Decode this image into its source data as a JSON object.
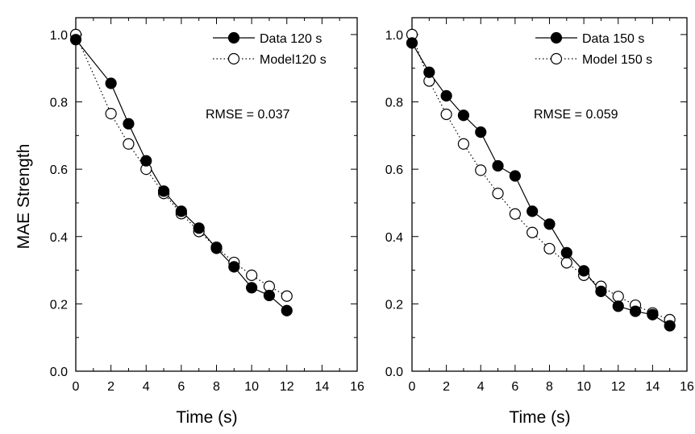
{
  "figure": {
    "ylabel": "MAE Strength"
  },
  "chart_data": [
    {
      "type": "line",
      "title": "",
      "xlabel": "Time (s)",
      "ylabel": "MAE Strength",
      "xlim": [
        0,
        16
      ],
      "ylim": [
        0,
        1.05
      ],
      "xticks": [
        "0",
        "2",
        "4",
        "6",
        "8",
        "10",
        "12",
        "14",
        "16"
      ],
      "yticks": [
        "0.0",
        "0.2",
        "0.4",
        "0.6",
        "0.8",
        "1.0"
      ],
      "grid": false,
      "legend_position": "top-right",
      "annotation": "RMSE = 0.037",
      "series": [
        {
          "name": "Data 120 s",
          "marker": "filled-circle",
          "line": "solid",
          "color": "#000000",
          "x": [
            0,
            2,
            3,
            4,
            5,
            6,
            7,
            8,
            9,
            10,
            11,
            12
          ],
          "y": [
            0.985,
            0.855,
            0.735,
            0.625,
            0.535,
            0.475,
            0.425,
            0.365,
            0.31,
            0.248,
            0.225,
            0.18
          ]
        },
        {
          "name": "Model120 s",
          "marker": "open-circle",
          "line": "dotted",
          "color": "#000000",
          "x": [
            0,
            2,
            3,
            4,
            5,
            6,
            7,
            8,
            9,
            10,
            11,
            12
          ],
          "y": [
            1.0,
            0.765,
            0.675,
            0.6,
            0.528,
            0.468,
            0.415,
            0.368,
            0.323,
            0.285,
            0.252,
            0.223
          ]
        }
      ]
    },
    {
      "type": "line",
      "title": "",
      "xlabel": "Time (s)",
      "ylabel": "",
      "xlim": [
        0,
        16
      ],
      "ylim": [
        0,
        1.05
      ],
      "xticks": [
        "0",
        "2",
        "4",
        "6",
        "8",
        "10",
        "12",
        "14",
        "16"
      ],
      "yticks": [
        "0.0",
        "0.2",
        "0.4",
        "0.6",
        "0.8",
        "1.0"
      ],
      "grid": false,
      "legend_position": "top-right",
      "annotation": "RMSE = 0.059",
      "series": [
        {
          "name": "Data 150 s",
          "marker": "filled-circle",
          "line": "solid",
          "color": "#000000",
          "x": [
            0,
            1,
            2,
            3,
            4,
            5,
            6,
            7,
            8,
            9,
            10,
            11,
            12,
            13,
            14,
            15
          ],
          "y": [
            0.975,
            0.888,
            0.818,
            0.76,
            0.71,
            0.61,
            0.58,
            0.475,
            0.437,
            0.352,
            0.298,
            0.237,
            0.193,
            0.178,
            0.168,
            0.135
          ]
        },
        {
          "name": "Model 150 s",
          "marker": "open-circle",
          "line": "dotted",
          "color": "#000000",
          "x": [
            0,
            1,
            2,
            3,
            4,
            5,
            6,
            7,
            8,
            9,
            10,
            11,
            12,
            13,
            14,
            15
          ],
          "y": [
            1.0,
            0.862,
            0.763,
            0.675,
            0.597,
            0.528,
            0.467,
            0.412,
            0.364,
            0.322,
            0.285,
            0.252,
            0.222,
            0.196,
            0.173,
            0.153
          ]
        }
      ]
    }
  ]
}
